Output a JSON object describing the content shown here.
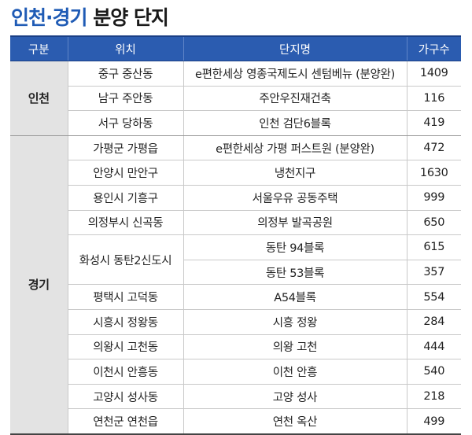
{
  "title": {
    "part1": "인천·경기",
    "part2": " 분양 단지"
  },
  "headers": {
    "category": "구분",
    "location": "위치",
    "complex": "단지명",
    "households": "가구수"
  },
  "groups": [
    {
      "region": "인천",
      "rows": [
        {
          "location": "중구 중산동",
          "complex": "e편한세상 영종국제도시 센텀베뉴 (분양완)",
          "households": "1409"
        },
        {
          "location": "남구 주안동",
          "complex": "주안우진재건축",
          "households": "116"
        },
        {
          "location": "서구 당하동",
          "complex": "인천 검단6블록",
          "households": "419"
        }
      ]
    },
    {
      "region": "경기",
      "rows": [
        {
          "location": "가평군 가평읍",
          "complex": "e편한세상 가평 퍼스트원 (분양완)",
          "households": "472"
        },
        {
          "location": "안양시 만안구",
          "complex": "냉천지구",
          "households": "1630"
        },
        {
          "location": "용인시 기흥구",
          "complex": "서울우유 공동주택",
          "households": "999"
        },
        {
          "location": "의정부시 신곡동",
          "complex": "의정부 발곡공원",
          "households": "650"
        },
        {
          "location": "화성시 동탄2신도시",
          "complex": "동탄 94블록",
          "households": "615"
        },
        {
          "location": "",
          "complex": "동탄 53블록",
          "households": "357"
        },
        {
          "location": "평택시 고덕동",
          "complex": "A54블록",
          "households": "554"
        },
        {
          "location": "시흥시 정왕동",
          "complex": "시흥 정왕",
          "households": "284"
        },
        {
          "location": "의왕시 고천동",
          "complex": "의왕 고천",
          "households": "444"
        },
        {
          "location": "이천시 안흥동",
          "complex": "이천 안흥",
          "households": "540"
        },
        {
          "location": "고양시 성사동",
          "complex": "고양 성사",
          "households": "218"
        },
        {
          "location": "연천군 연천읍",
          "complex": "연천 옥산",
          "households": "499"
        }
      ]
    }
  ]
}
